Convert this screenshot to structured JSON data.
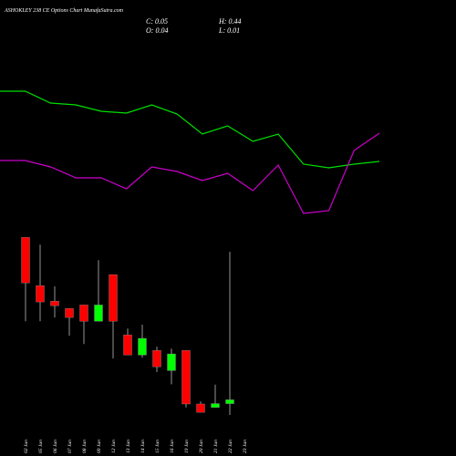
{
  "chart_data": {
    "type": "candlestick",
    "title": "ASHOKLEY 238 CE Options Chart MunafaSutra.com",
    "ohlc_labels": [
      "C: 0.05",
      "H: 0.44",
      "O: 0.04",
      "L: 0.01"
    ],
    "categories": [
      "02 Jun",
      "05 Jun",
      "06 Jun",
      "07 Jun",
      "08 Jun",
      "09 Jun",
      "12 Jun",
      "13 Jun",
      "14 Jun",
      "15 Jun",
      "16 Jun",
      "19 Jun",
      "20 Jun",
      "21 Jun",
      "22 Jun",
      "23 Jun"
    ],
    "open": [
      0.478,
      0.351,
      0.31,
      0.291,
      0.3,
      0.257,
      0.38,
      0.221,
      0.168,
      0.18,
      0.127,
      0.18,
      0.039,
      0.03,
      0.04,
      null
    ],
    "high": [
      0.478,
      0.459,
      0.349,
      0.291,
      0.3,
      0.418,
      0.38,
      0.238,
      0.248,
      0.19,
      0.185,
      0.18,
      0.046,
      0.09,
      0.44,
      null
    ],
    "low": [
      0.257,
      0.257,
      0.267,
      0.219,
      0.197,
      0.257,
      0.159,
      0.168,
      0.161,
      0.123,
      0.091,
      0.03,
      0.017,
      0.03,
      0.01,
      null
    ],
    "close": [
      0.358,
      0.308,
      0.298,
      0.267,
      0.257,
      0.3,
      0.257,
      0.168,
      0.212,
      0.137,
      0.171,
      0.039,
      0.017,
      0.04,
      0.05,
      null
    ],
    "up_color": "#00ff00",
    "down_color": "#ff0000",
    "ylim": [
      0,
      0.5
    ],
    "lines": {
      "ylim": [
        0,
        180
      ],
      "series": [
        {
          "color": "#00e000",
          "values": [
            160,
            160,
            147,
            145,
            138,
            136,
            145,
            135,
            113,
            122,
            105,
            113,
            80,
            76,
            80,
            83
          ]
        },
        {
          "color": "#cc00cc",
          "values": [
            84,
            84,
            77,
            65,
            65,
            53,
            77,
            72,
            62,
            70,
            51,
            79,
            26,
            29,
            95,
            114
          ]
        }
      ]
    }
  }
}
